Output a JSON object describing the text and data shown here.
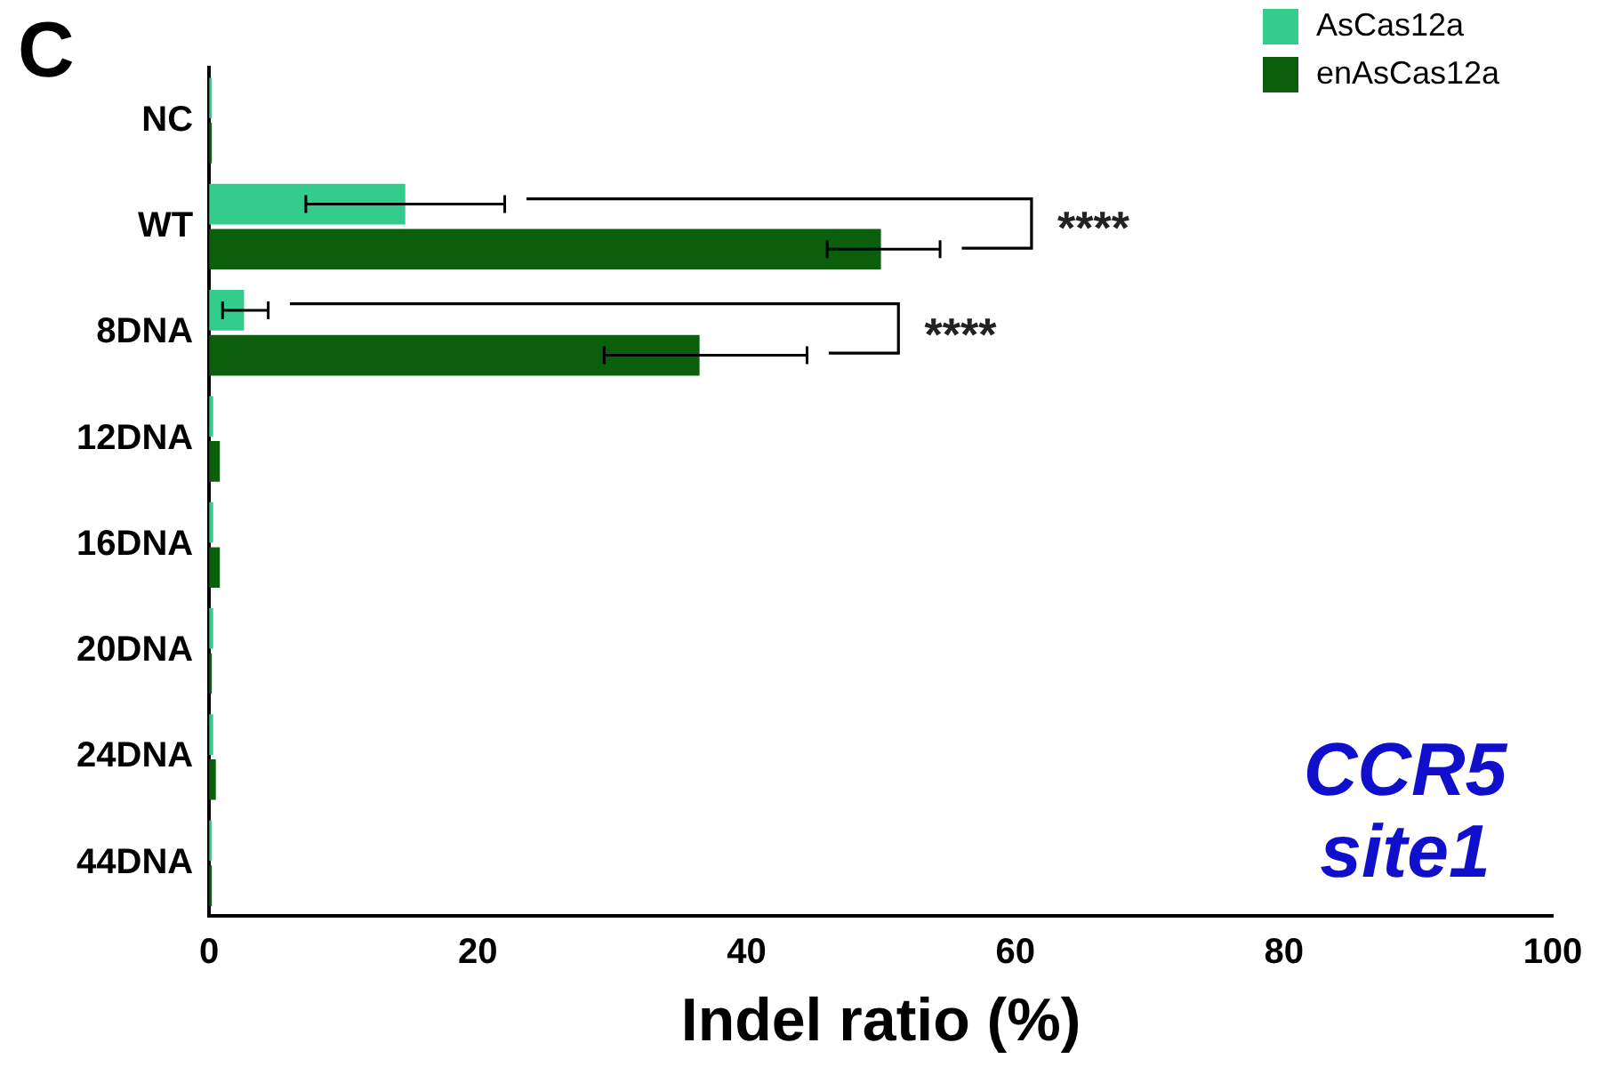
{
  "chart_data": {
    "type": "bar",
    "orientation": "horizontal",
    "title": "C",
    "xlabel": "Indel ratio (%)",
    "categories": [
      "NC",
      "WT",
      "8DNA",
      "12DNA",
      "16DNA",
      "20DNA",
      "24DNA",
      "44DNA"
    ],
    "series": [
      {
        "name": "AsCas12a",
        "color": "#33cc8c",
        "values": [
          0.2,
          14.6,
          2.6,
          0.3,
          0.3,
          0.3,
          0.3,
          0.2
        ],
        "errors": [
          null,
          [
            7.2,
            22
          ],
          [
            1,
            4.4
          ],
          null,
          null,
          null,
          null,
          null
        ]
      },
      {
        "name": "enAsCas12a",
        "color": "#0b5e0b",
        "values": [
          0.2,
          50,
          36.5,
          0.8,
          0.8,
          0.2,
          0.5,
          0.2
        ],
        "errors": [
          null,
          [
            46,
            54.4
          ],
          [
            29.4,
            44.5
          ],
          null,
          null,
          null,
          null,
          null
        ]
      }
    ],
    "xlim": [
      0,
      100
    ],
    "xticks": [
      0,
      20,
      40,
      60,
      80,
      100
    ],
    "grid": false,
    "legend": "top right",
    "annotations": [
      "****",
      "****",
      "CCR5 site1"
    ]
  }
}
